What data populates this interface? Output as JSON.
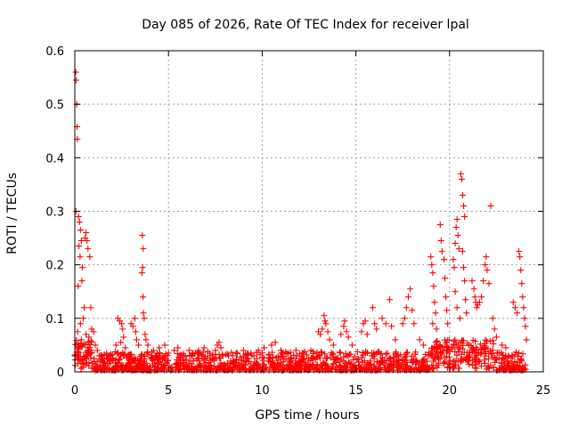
{
  "chart_data": {
    "type": "scatter",
    "title": "Day 085 of 2026, Rate Of TEC Index for receiver lpal",
    "xlabel": "GPS time / hours",
    "ylabel": "ROTI / TECUs",
    "xlim": [
      0,
      25
    ],
    "ylim": [
      0,
      0.6
    ],
    "x_ticks": [
      0,
      5,
      10,
      15,
      20,
      25
    ],
    "y_ticks": [
      0,
      0.1,
      0.2,
      0.3,
      0.4,
      0.5,
      0.6
    ],
    "x_tick_labels": [
      "0",
      "5",
      "10",
      "15",
      "20",
      "25"
    ],
    "y_tick_labels": [
      "0",
      "0.1",
      "0.2",
      "0.3",
      "0.4",
      "0.5",
      "0.6"
    ],
    "grid": true,
    "marker": "+",
    "color": "#ff0000",
    "series": [
      {
        "name": "ROTI",
        "points": [
          [
            0.05,
            0.56
          ],
          [
            0.07,
            0.545
          ],
          [
            0.1,
            0.5
          ],
          [
            0.12,
            0.458
          ],
          [
            0.13,
            0.435
          ],
          [
            0.06,
            0.3
          ],
          [
            0.2,
            0.29
          ],
          [
            0.25,
            0.28
          ],
          [
            0.3,
            0.265
          ],
          [
            0.35,
            0.245
          ],
          [
            0.22,
            0.235
          ],
          [
            0.28,
            0.215
          ],
          [
            0.4,
            0.195
          ],
          [
            0.38,
            0.17
          ],
          [
            0.18,
            0.16
          ],
          [
            0.55,
            0.25
          ],
          [
            0.6,
            0.26
          ],
          [
            0.65,
            0.245
          ],
          [
            0.7,
            0.23
          ],
          [
            0.8,
            0.215
          ],
          [
            0.5,
            0.12
          ],
          [
            0.45,
            0.1
          ],
          [
            0.85,
            0.12
          ],
          [
            0.9,
            0.08
          ],
          [
            1.0,
            0.075
          ],
          [
            1.1,
            0.05
          ],
          [
            0.3,
            0.09
          ],
          [
            0.15,
            0.075
          ],
          [
            0.02,
            0.012
          ],
          [
            0.1,
            0.03
          ],
          [
            0.2,
            0.045
          ],
          [
            0.35,
            0.06
          ],
          [
            0.6,
            0.07
          ],
          [
            0.75,
            0.065
          ],
          [
            1.2,
            0.04
          ],
          [
            1.3,
            0.03
          ],
          [
            1.5,
            0.025
          ],
          [
            1.7,
            0.035
          ],
          [
            1.9,
            0.02
          ],
          [
            2.3,
            0.1
          ],
          [
            2.4,
            0.095
          ],
          [
            2.5,
            0.09
          ],
          [
            2.55,
            0.08
          ],
          [
            2.6,
            0.065
          ],
          [
            2.45,
            0.055
          ],
          [
            2.2,
            0.05
          ],
          [
            2.7,
            0.045
          ],
          [
            2.8,
            0.03
          ],
          [
            3.0,
            0.09
          ],
          [
            3.1,
            0.085
          ],
          [
            3.2,
            0.1
          ],
          [
            3.25,
            0.075
          ],
          [
            3.3,
            0.06
          ],
          [
            3.4,
            0.05
          ],
          [
            3.6,
            0.255
          ],
          [
            3.65,
            0.23
          ],
          [
            3.62,
            0.195
          ],
          [
            3.58,
            0.185
          ],
          [
            3.64,
            0.14
          ],
          [
            3.66,
            0.11
          ],
          [
            3.7,
            0.1
          ],
          [
            3.75,
            0.07
          ],
          [
            3.8,
            0.06
          ],
          [
            3.9,
            0.05
          ],
          [
            4.2,
            0.04
          ],
          [
            4.5,
            0.045
          ],
          [
            4.8,
            0.05
          ],
          [
            5.0,
            0.035
          ],
          [
            5.3,
            0.04
          ],
          [
            5.5,
            0.045
          ],
          [
            5.8,
            0.03
          ],
          [
            6.1,
            0.04
          ],
          [
            6.3,
            0.035
          ],
          [
            6.6,
            0.04
          ],
          [
            6.9,
            0.045
          ],
          [
            7.2,
            0.03
          ],
          [
            7.5,
            0.04
          ],
          [
            7.7,
            0.055
          ],
          [
            7.6,
            0.05
          ],
          [
            7.8,
            0.045
          ],
          [
            7.9,
            0.03
          ],
          [
            8.2,
            0.03
          ],
          [
            8.6,
            0.035
          ],
          [
            9.0,
            0.04
          ],
          [
            9.4,
            0.035
          ],
          [
            9.8,
            0.04
          ],
          [
            10.1,
            0.045
          ],
          [
            10.5,
            0.05
          ],
          [
            10.7,
            0.055
          ],
          [
            11.0,
            0.04
          ],
          [
            11.4,
            0.035
          ],
          [
            11.8,
            0.04
          ],
          [
            12.2,
            0.035
          ],
          [
            12.6,
            0.04
          ],
          [
            13.0,
            0.075
          ],
          [
            13.1,
            0.07
          ],
          [
            13.2,
            0.08
          ],
          [
            13.3,
            0.105
          ],
          [
            13.35,
            0.095
          ],
          [
            13.4,
            0.09
          ],
          [
            13.5,
            0.075
          ],
          [
            13.6,
            0.06
          ],
          [
            13.8,
            0.05
          ],
          [
            14.2,
            0.07
          ],
          [
            14.35,
            0.085
          ],
          [
            14.4,
            0.095
          ],
          [
            14.5,
            0.075
          ],
          [
            14.6,
            0.065
          ],
          [
            14.8,
            0.05
          ],
          [
            15.3,
            0.075
          ],
          [
            15.4,
            0.09
          ],
          [
            15.5,
            0.095
          ],
          [
            15.6,
            0.07
          ],
          [
            15.9,
            0.12
          ],
          [
            16.0,
            0.09
          ],
          [
            16.1,
            0.08
          ],
          [
            16.4,
            0.1
          ],
          [
            16.6,
            0.09
          ],
          [
            16.8,
            0.135
          ],
          [
            16.9,
            0.085
          ],
          [
            17.1,
            0.06
          ],
          [
            17.5,
            0.09
          ],
          [
            17.6,
            0.1
          ],
          [
            17.7,
            0.12
          ],
          [
            17.8,
            0.14
          ],
          [
            17.9,
            0.155
          ],
          [
            18.0,
            0.115
          ],
          [
            18.1,
            0.09
          ],
          [
            18.4,
            0.06
          ],
          [
            18.6,
            0.05
          ],
          [
            19.0,
            0.215
          ],
          [
            19.05,
            0.2
          ],
          [
            19.1,
            0.185
          ],
          [
            19.15,
            0.16
          ],
          [
            19.2,
            0.13
          ],
          [
            19.25,
            0.11
          ],
          [
            19.1,
            0.09
          ],
          [
            19.3,
            0.08
          ],
          [
            19.5,
            0.275
          ],
          [
            19.55,
            0.245
          ],
          [
            19.6,
            0.225
          ],
          [
            19.7,
            0.21
          ],
          [
            19.75,
            0.175
          ],
          [
            19.8,
            0.14
          ],
          [
            19.85,
            0.115
          ],
          [
            19.9,
            0.09
          ],
          [
            20.2,
            0.21
          ],
          [
            20.25,
            0.195
          ],
          [
            20.3,
            0.24
          ],
          [
            20.35,
            0.27
          ],
          [
            20.4,
            0.285
          ],
          [
            20.45,
            0.255
          ],
          [
            20.5,
            0.23
          ],
          [
            20.3,
            0.15
          ],
          [
            20.4,
            0.12
          ],
          [
            20.55,
            0.1
          ],
          [
            20.6,
            0.37
          ],
          [
            20.65,
            0.36
          ],
          [
            20.7,
            0.33
          ],
          [
            20.75,
            0.31
          ],
          [
            20.8,
            0.29
          ],
          [
            20.7,
            0.225
          ],
          [
            20.75,
            0.195
          ],
          [
            20.8,
            0.17
          ],
          [
            20.85,
            0.135
          ],
          [
            20.9,
            0.11
          ],
          [
            21.2,
            0.17
          ],
          [
            21.3,
            0.155
          ],
          [
            21.35,
            0.14
          ],
          [
            21.4,
            0.13
          ],
          [
            21.45,
            0.12
          ],
          [
            21.5,
            0.125
          ],
          [
            21.6,
            0.13
          ],
          [
            21.7,
            0.14
          ],
          [
            21.8,
            0.17
          ],
          [
            21.9,
            0.2
          ],
          [
            21.95,
            0.215
          ],
          [
            22.0,
            0.19
          ],
          [
            22.1,
            0.165
          ],
          [
            22.2,
            0.31
          ],
          [
            22.3,
            0.1
          ],
          [
            22.4,
            0.08
          ],
          [
            22.5,
            0.065
          ],
          [
            22.8,
            0.05
          ],
          [
            23.0,
            0.045
          ],
          [
            23.4,
            0.13
          ],
          [
            23.5,
            0.12
          ],
          [
            23.6,
            0.11
          ],
          [
            23.7,
            0.225
          ],
          [
            23.75,
            0.215
          ],
          [
            23.8,
            0.19
          ],
          [
            23.85,
            0.165
          ],
          [
            23.9,
            0.14
          ],
          [
            23.95,
            0.12
          ],
          [
            24.0,
            0.1
          ],
          [
            24.05,
            0.085
          ],
          [
            24.1,
            0.06
          ]
        ]
      }
    ]
  }
}
